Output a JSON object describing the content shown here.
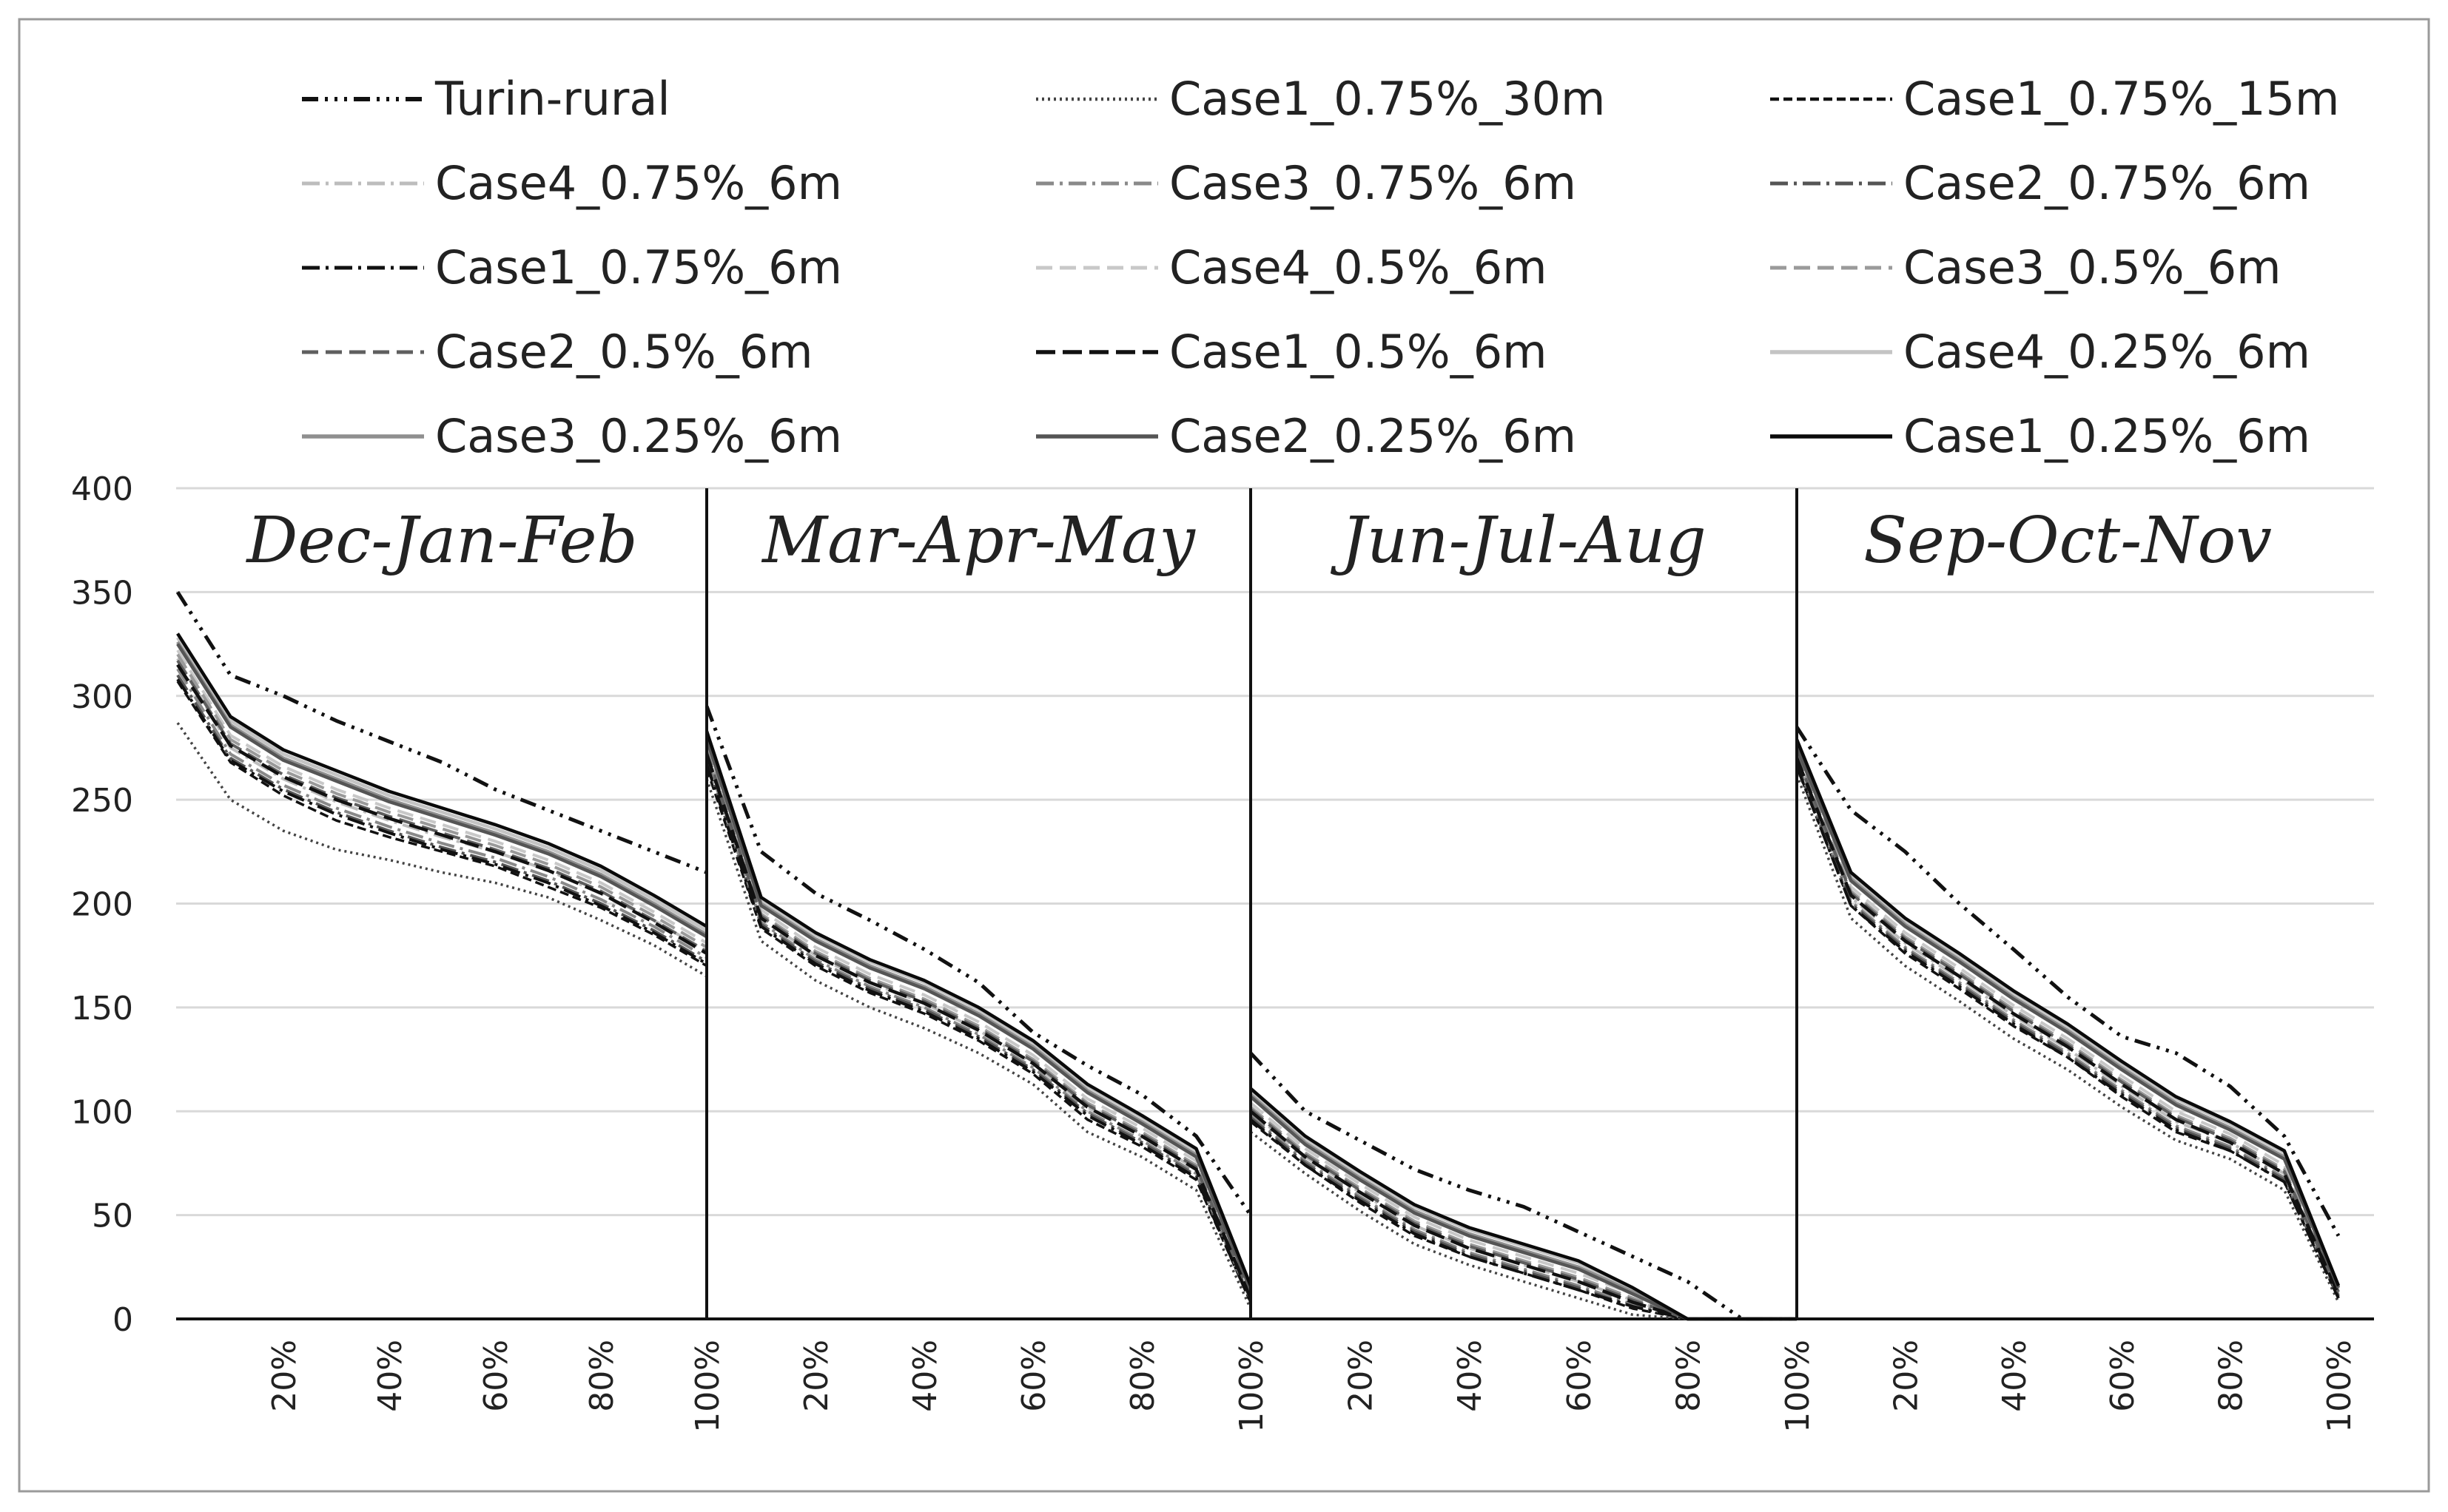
{
  "chart_data": {
    "type": "line",
    "title": "",
    "xlabel": "",
    "ylabel": "",
    "ylim": [
      0,
      400
    ],
    "yticks": [
      0,
      50,
      100,
      150,
      200,
      250,
      300,
      350,
      400
    ],
    "grid": "horizontal",
    "legend_placement": "top",
    "x_tick_labels": [
      "20%",
      "40%",
      "60%",
      "80%",
      "100%"
    ],
    "x_positions": [
      0,
      10,
      20,
      30,
      40,
      50,
      60,
      70,
      80,
      90,
      100
    ],
    "panels": [
      {
        "name": "Dec-Jan-Feb"
      },
      {
        "name": "Mar-Apr-May"
      },
      {
        "name": "Jun-Jul-Aug"
      },
      {
        "name": "Sep-Oct-Nov"
      }
    ],
    "series": [
      {
        "name": "Turin-rural",
        "color": "#111111",
        "width": 5,
        "dash": "22 9 4 9 4 9 4 9",
        "values": [
          [
            350,
            310,
            300,
            288,
            278,
            268,
            255,
            245,
            235,
            225,
            215
          ],
          [
            295,
            225,
            205,
            192,
            178,
            162,
            138,
            122,
            108,
            88,
            50
          ],
          [
            128,
            100,
            86,
            72,
            62,
            54,
            42,
            30,
            18,
            0,
            0
          ],
          [
            285,
            245,
            225,
            200,
            178,
            155,
            136,
            128,
            112,
            88,
            40
          ]
        ]
      },
      {
        "name": "Case1_0.75%_30m",
        "color": "#444444",
        "width": 3.5,
        "dash": "3 5",
        "values": [
          [
            287,
            250,
            235,
            226,
            221,
            215,
            210,
            203,
            192,
            180,
            165
          ],
          [
            260,
            182,
            163,
            150,
            140,
            128,
            113,
            90,
            78,
            62,
            5
          ],
          [
            90,
            70,
            52,
            36,
            26,
            18,
            10,
            2,
            0,
            0,
            0
          ],
          [
            262,
            193,
            170,
            153,
            135,
            120,
            102,
            86,
            77,
            62,
            8
          ]
        ]
      },
      {
        "name": "Case1_0.75%_15m",
        "color": "#111111",
        "width": 3.5,
        "dash": "12 6",
        "values": [
          [
            307,
            268,
            252,
            240,
            232,
            225,
            218,
            208,
            198,
            185,
            170
          ],
          [
            265,
            188,
            170,
            157,
            147,
            134,
            118,
            96,
            83,
            67,
            8
          ],
          [
            95,
            74,
            56,
            40,
            30,
            22,
            14,
            5,
            0,
            0,
            0
          ],
          [
            266,
            199,
            176,
            159,
            141,
            126,
            107,
            90,
            81,
            66,
            10
          ]
        ]
      },
      {
        "name": "Case4_0.75%_6m",
        "color": "#bdbdbd",
        "width": 4,
        "dash": "24 8 4 8",
        "values": [
          [
            318,
            275,
            260,
            249,
            240,
            232,
            225,
            216,
            205,
            192,
            177
          ],
          [
            272,
            193,
            175,
            162,
            152,
            139,
            123,
            102,
            88,
            72,
            10
          ],
          [
            100,
            78,
            61,
            45,
            34,
            26,
            18,
            9,
            0,
            0,
            0
          ],
          [
            270,
            203,
            181,
            164,
            146,
            130,
            112,
            95,
            85,
            70,
            12
          ]
        ]
      },
      {
        "name": "Case3_0.75%_6m",
        "color": "#8a8a8a",
        "width": 4,
        "dash": "24 8 4 8",
        "values": [
          [
            313,
            272,
            257,
            246,
            237,
            229,
            222,
            213,
            202,
            189,
            174
          ],
          [
            270,
            191,
            173,
            160,
            150,
            137,
            121,
            100,
            86,
            70,
            9
          ],
          [
            98,
            76,
            59,
            43,
            32,
            24,
            16,
            7,
            0,
            0,
            0
          ],
          [
            268,
            201,
            179,
            162,
            144,
            128,
            110,
            93,
            83,
            68,
            11
          ]
        ]
      },
      {
        "name": "Case2_0.75%_6m",
        "color": "#555555",
        "width": 4,
        "dash": "24 8 4 8",
        "values": [
          [
            310,
            270,
            255,
            244,
            235,
            227,
            220,
            211,
            200,
            187,
            172
          ],
          [
            268,
            190,
            172,
            159,
            149,
            136,
            120,
            99,
            85,
            69,
            9
          ],
          [
            97,
            75,
            58,
            42,
            31,
            23,
            15,
            6,
            0,
            0,
            0
          ],
          [
            267,
            200,
            178,
            161,
            143,
            127,
            109,
            92,
            82,
            67,
            11
          ]
        ]
      },
      {
        "name": "Case1_0.75%_6m",
        "color": "#111111",
        "width": 4,
        "dash": "24 8 4 8",
        "values": [
          [
            308,
            269,
            254,
            243,
            234,
            226,
            219,
            210,
            199,
            186,
            171
          ],
          [
            267,
            189,
            171,
            158,
            148,
            135,
            119,
            98,
            84,
            68,
            8
          ],
          [
            96,
            74,
            57,
            41,
            30,
            22,
            14,
            6,
            0,
            0,
            0
          ],
          [
            266,
            199,
            177,
            160,
            142,
            126,
            108,
            91,
            81,
            66,
            10
          ]
        ]
      },
      {
        "name": "Case4_0.5%_6m",
        "color": "#c8c8c8",
        "width": 4,
        "dash": "22 10",
        "values": [
          [
            322,
            281,
            266,
            255,
            246,
            238,
            230,
            221,
            210,
            196,
            181
          ],
          [
            276,
            197,
            179,
            166,
            156,
            143,
            127,
            106,
            92,
            76,
            12
          ],
          [
            104,
            82,
            65,
            49,
            38,
            30,
            22,
            12,
            0,
            0,
            0
          ],
          [
            273,
            208,
            186,
            169,
            151,
            135,
            117,
            100,
            89,
            74,
            14
          ]
        ]
      },
      {
        "name": "Case3_0.5%_6m",
        "color": "#9a9a9a",
        "width": 4,
        "dash": "22 10",
        "values": [
          [
            320,
            279,
            264,
            253,
            244,
            236,
            228,
            219,
            208,
            194,
            179
          ],
          [
            274,
            195,
            177,
            164,
            154,
            141,
            125,
            104,
            90,
            74,
            11
          ],
          [
            102,
            80,
            63,
            47,
            36,
            28,
            20,
            10,
            0,
            0,
            0
          ],
          [
            272,
            206,
            184,
            167,
            149,
            133,
            115,
            98,
            87,
            72,
            13
          ]
        ]
      },
      {
        "name": "Case2_0.5%_6m",
        "color": "#5f5f5f",
        "width": 4,
        "dash": "22 10",
        "values": [
          [
            317,
            277,
            262,
            251,
            242,
            234,
            226,
            217,
            206,
            192,
            177
          ],
          [
            273,
            194,
            176,
            163,
            153,
            140,
            124,
            103,
            89,
            73,
            11
          ],
          [
            101,
            79,
            62,
            46,
            35,
            27,
            19,
            9,
            0,
            0,
            0
          ],
          [
            271,
            205,
            183,
            166,
            148,
            132,
            114,
            97,
            86,
            71,
            13
          ]
        ]
      },
      {
        "name": "Case1_0.5%_6m",
        "color": "#111111",
        "width": 4.5,
        "dash": "26 10",
        "values": [
          [
            315,
            276,
            261,
            250,
            241,
            233,
            225,
            216,
            205,
            191,
            176
          ],
          [
            272,
            193,
            175,
            162,
            152,
            139,
            123,
            102,
            88,
            72,
            10
          ],
          [
            100,
            78,
            61,
            45,
            34,
            26,
            18,
            8,
            0,
            0,
            0
          ],
          [
            270,
            204,
            182,
            165,
            147,
            131,
            113,
            96,
            85,
            70,
            12
          ]
        ]
      },
      {
        "name": "Case4_0.25%_6m",
        "color": "#c4c4c4",
        "width": 4.5,
        "dash": "",
        "values": [
          [
            328,
            288,
            272,
            262,
            252,
            244,
            236,
            227,
            216,
            202,
            187
          ],
          [
            282,
            202,
            185,
            172,
            162,
            149,
            133,
            112,
            97,
            81,
            15
          ],
          [
            110,
            87,
            70,
            54,
            43,
            35,
            27,
            14,
            0,
            0,
            0
          ],
          [
            278,
            214,
            192,
            175,
            157,
            141,
            123,
            106,
            94,
            80,
            16
          ]
        ]
      },
      {
        "name": "Case3_0.25%_6m",
        "color": "#8f8f8f",
        "width": 4.5,
        "dash": "",
        "values": [
          [
            326,
            286,
            270,
            260,
            250,
            242,
            234,
            225,
            214,
            200,
            185
          ],
          [
            280,
            200,
            183,
            170,
            160,
            147,
            131,
            110,
            95,
            79,
            14
          ],
          [
            108,
            85,
            68,
            52,
            41,
            33,
            25,
            13,
            0,
            0,
            0
          ],
          [
            276,
            212,
            190,
            173,
            155,
            139,
            121,
            104,
            92,
            78,
            15
          ]
        ]
      },
      {
        "name": "Case2_0.25%_6m",
        "color": "#555555",
        "width": 4.5,
        "dash": "",
        "values": [
          [
            325,
            285,
            269,
            259,
            249,
            241,
            233,
            224,
            213,
            199,
            184
          ],
          [
            279,
            199,
            182,
            169,
            159,
            146,
            130,
            109,
            94,
            78,
            14
          ],
          [
            107,
            84,
            67,
            51,
            40,
            32,
            24,
            12,
            0,
            0,
            0
          ],
          [
            275,
            211,
            189,
            172,
            154,
            138,
            120,
            103,
            91,
            77,
            15
          ]
        ]
      },
      {
        "name": "Case1_0.25%_6m",
        "color": "#0a0a0a",
        "width": 4.5,
        "dash": "",
        "values": [
          [
            330,
            290,
            274,
            264,
            254,
            246,
            238,
            229,
            218,
            204,
            189
          ],
          [
            283,
            203,
            186,
            173,
            163,
            150,
            134,
            113,
            98,
            82,
            16
          ],
          [
            111,
            88,
            71,
            55,
            44,
            36,
            28,
            15,
            0,
            0,
            0
          ],
          [
            279,
            215,
            193,
            176,
            158,
            142,
            124,
            107,
            95,
            81,
            16
          ]
        ]
      }
    ]
  }
}
